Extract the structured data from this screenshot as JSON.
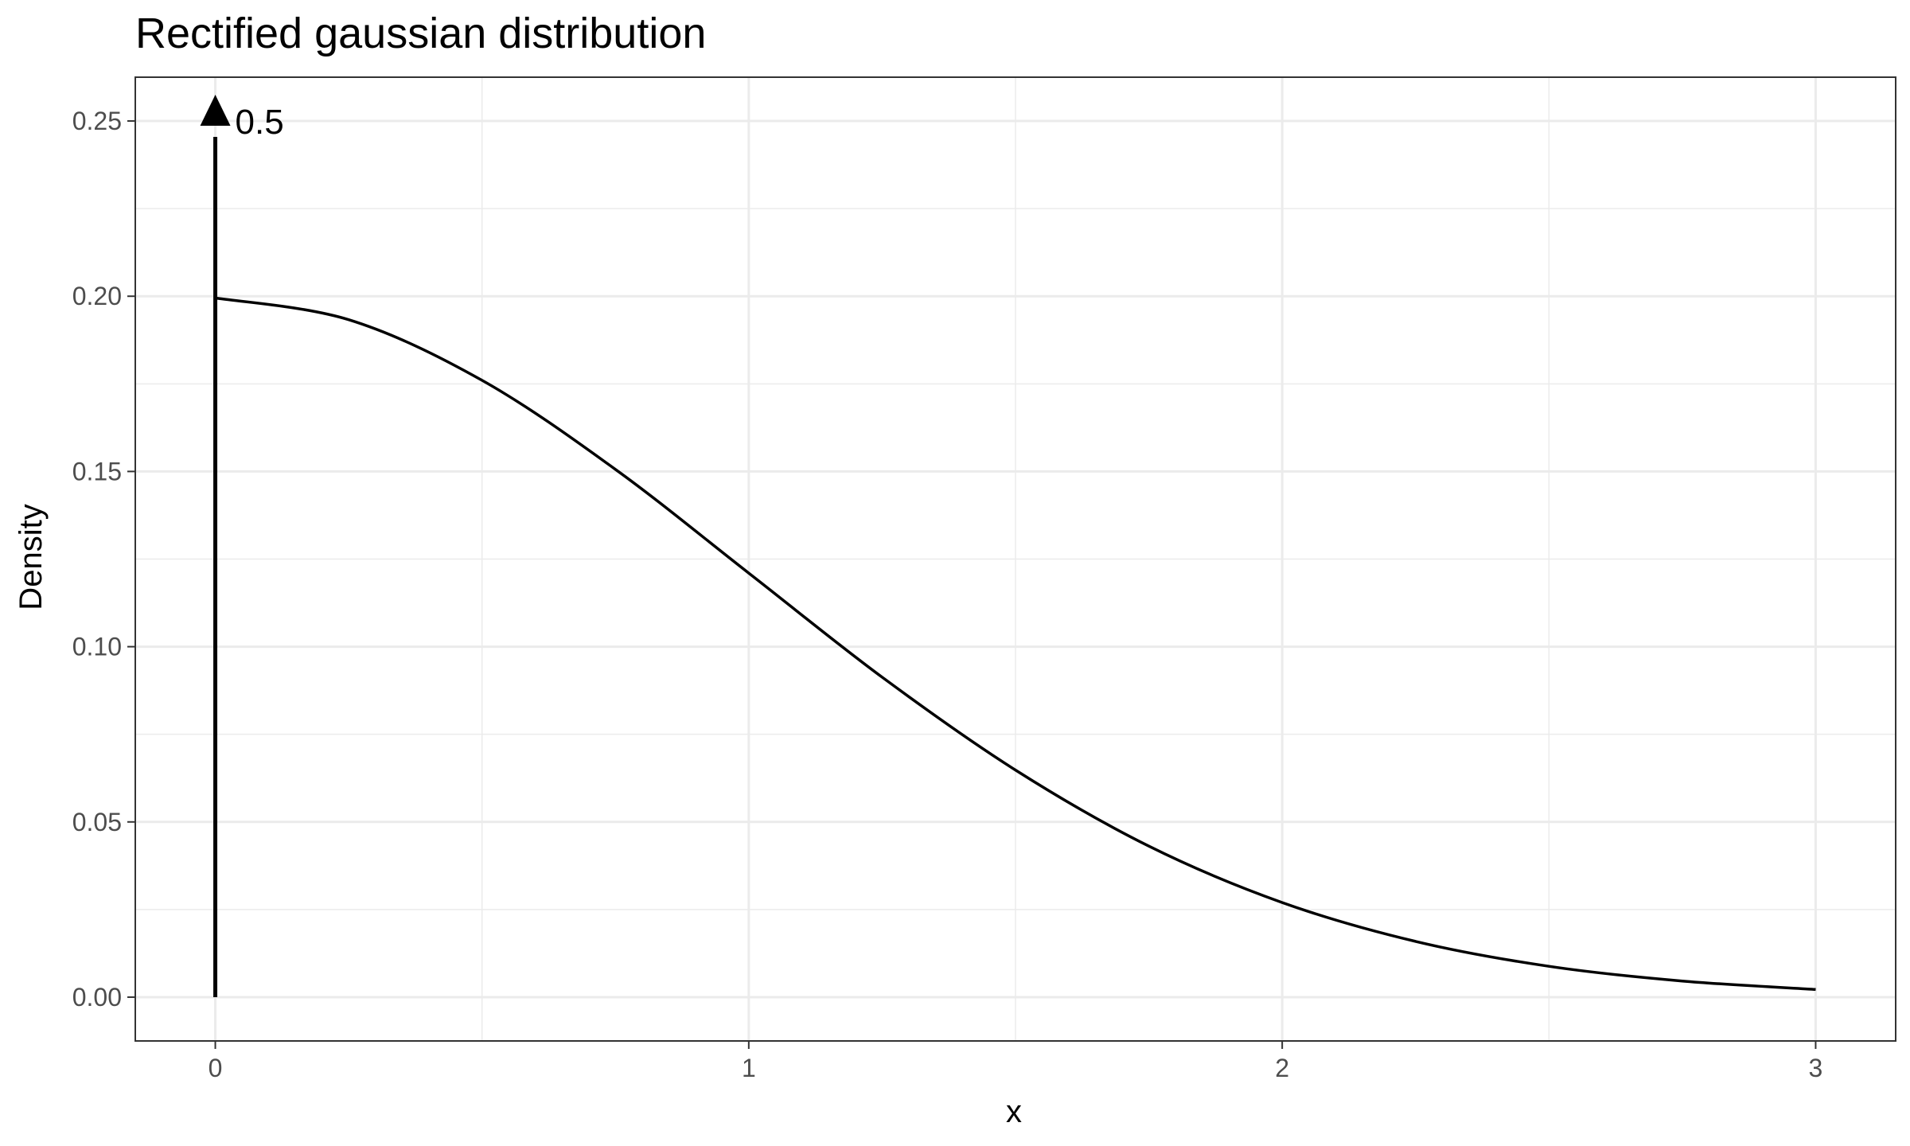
{
  "chart_data": {
    "type": "line",
    "title": "Rectified gaussian distribution",
    "xlabel": "x",
    "ylabel": "Density",
    "xlim": [
      -0.15,
      3.15
    ],
    "ylim": [
      -0.0125,
      0.2625
    ],
    "x_ticks": [
      0,
      1,
      2,
      3
    ],
    "x_tick_labels": [
      "0",
      "1",
      "2",
      "3"
    ],
    "y_ticks": [
      0,
      0.05,
      0.1,
      0.15,
      0.2,
      0.25
    ],
    "y_tick_labels": [
      "0.00",
      "0.05",
      "0.10",
      "0.15",
      "0.20",
      "0.25"
    ],
    "grid": true,
    "series": [
      {
        "x": [
          0,
          0.25,
          0.5,
          0.75,
          1.0,
          1.25,
          1.5,
          1.75,
          2.0,
          2.25,
          2.5,
          2.75,
          3.0
        ],
        "y": [
          0.1995,
          0.1933,
          0.176,
          0.1506,
          0.121,
          0.0913,
          0.0648,
          0.0431,
          0.027,
          0.0159,
          0.0088,
          0.0046,
          0.0022
        ]
      }
    ],
    "point_mass": {
      "x": 0,
      "arrow_to_y": 0.25,
      "label": "0.5"
    },
    "colors": {
      "line": "#000000",
      "grid": "#ebebeb",
      "panel_border": "#333333",
      "tick_label": "#4d4d4d"
    }
  }
}
